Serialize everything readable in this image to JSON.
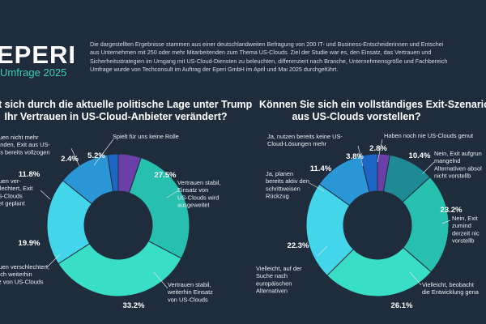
{
  "brand": {
    "name": "EPERI",
    "subtitle": "Umfrage 2025"
  },
  "intro_lines": [
    "Die dargestellten Ergebnisse stammen aus einer deutschlandweiten Befragung von 200 IT- und Business-Entscheiderinnen und Entschei",
    "aus Unternehmen mit 250 oder mehr Mitarbeitenden zum Thema US-Clouds. Ziel der Studie war es, den Einsatz, das Vertrauen und",
    "Sicherheitsstrategien im Umgang mit US-Cloud-Diensten zu beleuchten, differenziert nach Branche, Unternehmensgröße und Fachbereich",
    "Umfrage wurde von Techconsult im Auftrag der Eperi GmbH im April und Mai 2025 durchgeführt."
  ],
  "chart_data": [
    {
      "type": "pie",
      "title_lines": [
        "t sich durch die aktuelle politische Lage unter Trump",
        "Ihr Vertrauen in US-Cloud-Anbieter verändert?"
      ],
      "slices": [
        {
          "label_lines": [
            "Spielt für uns keine Rolle"
          ],
          "value": 5.2,
          "value_label": "5.2%",
          "color": "#6b3fa8"
        },
        {
          "label_lines": [
            "Vertrauen stabil,",
            "Einsatz von",
            "US-Clouds wird",
            "ausgeweitet"
          ],
          "value": 27.5,
          "value_label": "27.5%",
          "color": "#27bfae"
        },
        {
          "label_lines": [
            "Vertrauen stabil,",
            "weiterhin Einsatz",
            "von US-Clouds"
          ],
          "value": 33.2,
          "value_label": "33.2%",
          "color": "#38dfc6"
        },
        {
          "label_lines": [
            "rauen verschlechtert,",
            "noch weiterhin",
            "atz von US-Clouds"
          ],
          "value": 19.9,
          "value_label": "19.9%",
          "color": "#43d5ea"
        },
        {
          "label_lines": [
            "rauen ver-",
            "chlechtert, Exit",
            "US-Clouds",
            "kret geplant"
          ],
          "value": 11.8,
          "value_label": "11.8%",
          "color": "#2b96d6"
        },
        {
          "label_lines": [
            "rauen nicht mehr",
            "handen, Exit aus US-",
            "uds bereits vollzogen"
          ],
          "value": 2.4,
          "value_label": "2.4%",
          "color": "#1d66c6"
        }
      ]
    },
    {
      "type": "pie",
      "title_lines": [
        "Können Sie sich ein vollständiges Exit-Szenario",
        "aus US-Clouds vorstellen?"
      ],
      "slices": [
        {
          "label_lines": [
            "Haben noch nie US-Clouds genut"
          ],
          "value": 2.8,
          "value_label": "2.8%",
          "color": "#6b3fa8"
        },
        {
          "label_lines": [
            "Nein, Exit aufgrun",
            "mangelnd",
            "Alternativen absol",
            "nicht vorstellb"
          ],
          "value": 10.4,
          "value_label": "10.4%",
          "color": "#1e8a96"
        },
        {
          "label_lines": [
            "Nein, Exit",
            "zumind",
            "derzeit nic",
            "vorstellb"
          ],
          "value": 23.2,
          "value_label": "23.2%",
          "color": "#27bfae"
        },
        {
          "label_lines": [
            "Vielleicht, beobacht",
            "die Entwicklung gena"
          ],
          "value": 26.1,
          "value_label": "26.1%",
          "color": "#38dfc6"
        },
        {
          "label_lines": [
            "Vielleicht, auf der",
            "Suche nach",
            "europäischen",
            "Alternativen"
          ],
          "value": 22.3,
          "value_label": "22.3%",
          "color": "#43d5ea"
        },
        {
          "label_lines": [
            "Ja, planen",
            "bereits aktiv den",
            "schrittweisen",
            "Rückzug"
          ],
          "value": 11.4,
          "value_label": "11.4%",
          "color": "#2b96d6"
        },
        {
          "label_lines": [
            "Ja, nutzen bereits keine US-",
            "Cloud-Lösungen mehr"
          ],
          "value": 3.8,
          "value_label": "3.8%",
          "color": "#1d66c6"
        }
      ]
    }
  ]
}
